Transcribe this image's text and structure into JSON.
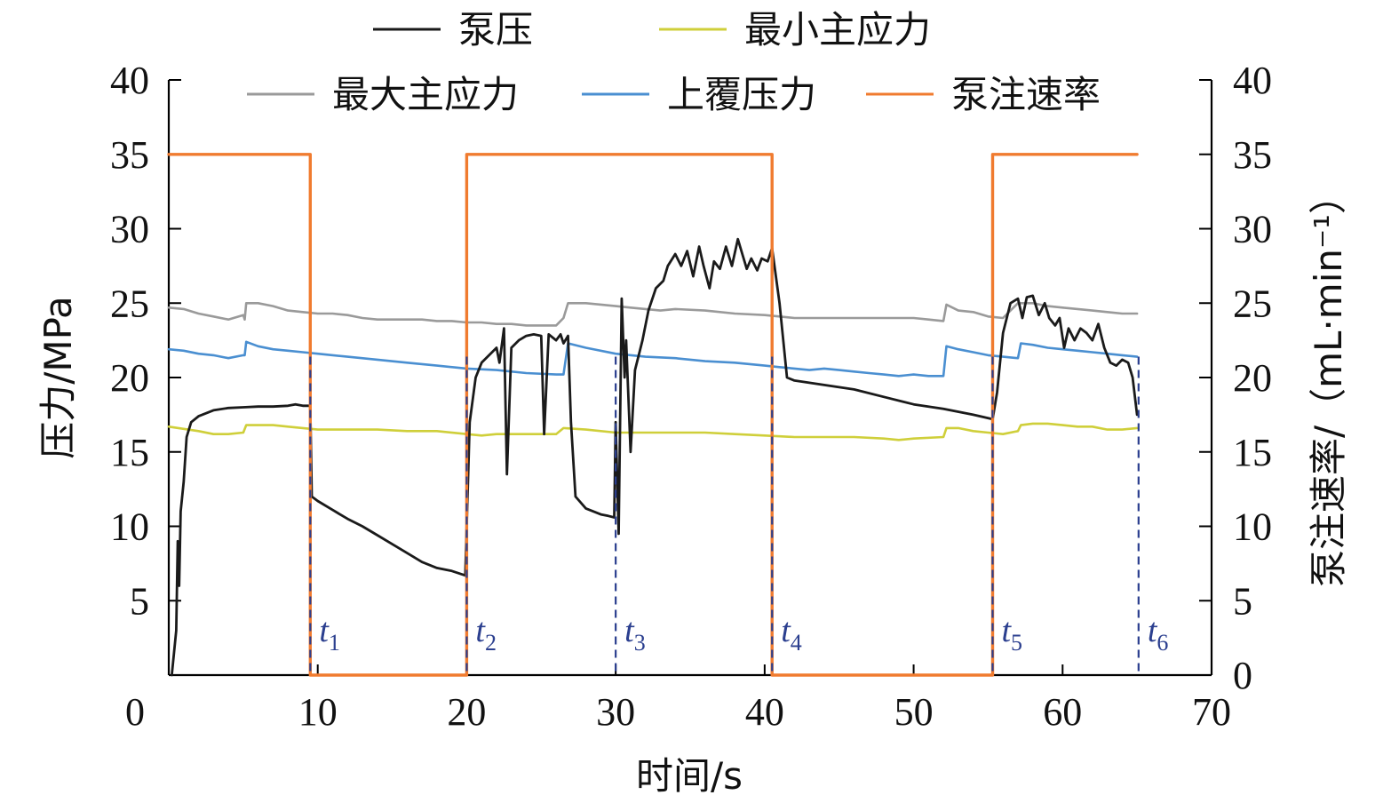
{
  "chart_data": {
    "type": "line",
    "xlabel": "时间/s",
    "ylabel_left": "压力/MPa",
    "ylabel_right": "泵注速率/（mL·min⁻¹）",
    "xlim": [
      0,
      70
    ],
    "ylim_left": [
      0,
      40
    ],
    "ylim_right": [
      0,
      40
    ],
    "xticks": [
      0,
      10,
      20,
      30,
      40,
      50,
      60,
      70
    ],
    "yticks_left": [
      5,
      10,
      15,
      20,
      25,
      30,
      35,
      40
    ],
    "yticks_right": [
      0,
      5,
      10,
      15,
      20,
      25,
      30,
      35,
      40
    ],
    "legend_position": "top",
    "markers": [
      {
        "label": "t",
        "sub": "1",
        "x": 9.5
      },
      {
        "label": "t",
        "sub": "2",
        "x": 20.0
      },
      {
        "label": "t",
        "sub": "3",
        "x": 30.0
      },
      {
        "label": "t",
        "sub": "4",
        "x": 40.5
      },
      {
        "label": "t",
        "sub": "5",
        "x": 55.3
      },
      {
        "label": "t",
        "sub": "6",
        "x": 65.1
      }
    ],
    "series": [
      {
        "name": "泵压",
        "color": "#1a1a1a",
        "axis": "left",
        "points": [
          [
            0.2,
            0
          ],
          [
            0.5,
            3
          ],
          [
            0.6,
            9
          ],
          [
            0.7,
            6
          ],
          [
            0.8,
            11
          ],
          [
            1.0,
            13
          ],
          [
            1.2,
            16
          ],
          [
            1.5,
            17
          ],
          [
            2,
            17.4
          ],
          [
            3,
            17.8
          ],
          [
            4,
            17.95
          ],
          [
            5,
            18
          ],
          [
            6,
            18.05
          ],
          [
            7,
            18.05
          ],
          [
            8,
            18.1
          ],
          [
            8.5,
            18.2
          ],
          [
            9,
            18.1
          ],
          [
            9.5,
            18.1
          ],
          [
            9.6,
            12
          ],
          [
            10,
            11.7
          ],
          [
            11,
            11.1
          ],
          [
            12,
            10.5
          ],
          [
            13,
            10.0
          ],
          [
            14,
            9.4
          ],
          [
            15,
            8.8
          ],
          [
            16,
            8.2
          ],
          [
            17,
            7.6
          ],
          [
            18,
            7.2
          ],
          [
            19,
            7.0
          ],
          [
            19.9,
            6.7
          ],
          [
            20.2,
            17
          ],
          [
            20.6,
            20
          ],
          [
            21,
            21
          ],
          [
            21.5,
            21.5
          ],
          [
            22,
            22
          ],
          [
            22.2,
            21
          ],
          [
            22.5,
            23.3
          ],
          [
            22.7,
            13.5
          ],
          [
            23,
            22
          ],
          [
            23.5,
            22.5
          ],
          [
            24,
            22.8
          ],
          [
            24.5,
            22.9
          ],
          [
            25,
            22.8
          ],
          [
            25.2,
            16.2
          ],
          [
            25.5,
            22.9
          ],
          [
            26,
            22.5
          ],
          [
            26.3,
            22.9
          ],
          [
            26.5,
            22.3
          ],
          [
            26.8,
            22.8
          ],
          [
            27.0,
            17
          ],
          [
            27.3,
            12
          ],
          [
            28,
            11.2
          ],
          [
            29,
            10.8
          ],
          [
            29.5,
            10.7
          ],
          [
            29.9,
            10.6
          ],
          [
            30.0,
            17
          ],
          [
            30.2,
            9.5
          ],
          [
            30.4,
            25.3
          ],
          [
            30.6,
            20
          ],
          [
            30.7,
            22.5
          ],
          [
            31,
            15
          ],
          [
            31.3,
            20.5
          ],
          [
            31.8,
            22.5
          ],
          [
            32.2,
            24.5
          ],
          [
            32.7,
            26
          ],
          [
            33.2,
            26.5
          ],
          [
            33.5,
            27.5
          ],
          [
            34,
            28.3
          ],
          [
            34.4,
            27.5
          ],
          [
            34.8,
            28.5
          ],
          [
            35.2,
            26.8
          ],
          [
            35.6,
            28.8
          ],
          [
            35.9,
            27.5
          ],
          [
            36.3,
            26
          ],
          [
            36.6,
            27.8
          ],
          [
            37,
            27.3
          ],
          [
            37.4,
            28.8
          ],
          [
            37.8,
            27.5
          ],
          [
            38.2,
            29.3
          ],
          [
            38.5,
            28.3
          ],
          [
            38.8,
            27.3
          ],
          [
            39.1,
            28
          ],
          [
            39.5,
            27.2
          ],
          [
            39.8,
            28
          ],
          [
            40.2,
            27.8
          ],
          [
            40.5,
            28.7
          ],
          [
            41,
            25
          ],
          [
            41.5,
            20
          ],
          [
            42,
            19.8
          ],
          [
            44,
            19.5
          ],
          [
            46,
            19.2
          ],
          [
            48,
            18.7
          ],
          [
            50,
            18.2
          ],
          [
            52,
            17.9
          ],
          [
            54,
            17.5
          ],
          [
            55.3,
            17.2
          ],
          [
            55.6,
            19
          ],
          [
            56,
            23
          ],
          [
            56.5,
            25
          ],
          [
            57,
            25.3
          ],
          [
            57.3,
            24
          ],
          [
            57.6,
            25.4
          ],
          [
            58,
            25.5
          ],
          [
            58.4,
            24.2
          ],
          [
            58.8,
            25
          ],
          [
            59.1,
            24
          ],
          [
            59.5,
            23.5
          ],
          [
            59.8,
            24
          ],
          [
            60.1,
            22
          ],
          [
            60.4,
            23.3
          ],
          [
            60.8,
            22.5
          ],
          [
            61.2,
            23.3
          ],
          [
            61.6,
            23
          ],
          [
            62,
            22.5
          ],
          [
            62.4,
            23.6
          ],
          [
            62.8,
            22
          ],
          [
            63.2,
            21
          ],
          [
            63.6,
            20.8
          ],
          [
            64,
            21.2
          ],
          [
            64.4,
            21.0
          ],
          [
            64.7,
            20
          ],
          [
            65.0,
            17.5
          ]
        ]
      },
      {
        "name": "最小主应力",
        "color": "#cfcf3a",
        "axis": "left",
        "points": [
          [
            0,
            16.7
          ],
          [
            2,
            16.4
          ],
          [
            3,
            16.2
          ],
          [
            4,
            16.2
          ],
          [
            5,
            16.3
          ],
          [
            5.2,
            16.8
          ],
          [
            7,
            16.8
          ],
          [
            8,
            16.7
          ],
          [
            9,
            16.6
          ],
          [
            10,
            16.5
          ],
          [
            12,
            16.5
          ],
          [
            14,
            16.5
          ],
          [
            16,
            16.4
          ],
          [
            18,
            16.4
          ],
          [
            20,
            16.2
          ],
          [
            21,
            16.1
          ],
          [
            22,
            16.2
          ],
          [
            24,
            16.2
          ],
          [
            26,
            16.2
          ],
          [
            26.5,
            16.6
          ],
          [
            28,
            16.5
          ],
          [
            30,
            16.3
          ],
          [
            32,
            16.3
          ],
          [
            34,
            16.3
          ],
          [
            36,
            16.3
          ],
          [
            38,
            16.2
          ],
          [
            40,
            16.1
          ],
          [
            42,
            16.0
          ],
          [
            44,
            16.0
          ],
          [
            46,
            16.0
          ],
          [
            48,
            15.9
          ],
          [
            49,
            15.8
          ],
          [
            50,
            15.9
          ],
          [
            52,
            16.0
          ],
          [
            52.2,
            16.6
          ],
          [
            53,
            16.6
          ],
          [
            54,
            16.4
          ],
          [
            55,
            16.3
          ],
          [
            56,
            16.2
          ],
          [
            57,
            16.4
          ],
          [
            57.2,
            16.8
          ],
          [
            58,
            16.9
          ],
          [
            59,
            16.9
          ],
          [
            60,
            16.8
          ],
          [
            61,
            16.7
          ],
          [
            62,
            16.7
          ],
          [
            63,
            16.5
          ],
          [
            64,
            16.5
          ],
          [
            65,
            16.6
          ]
        ]
      },
      {
        "name": "最大主应力",
        "color": "#9a9a9a",
        "axis": "left",
        "points": [
          [
            0,
            24.7
          ],
          [
            1,
            24.6
          ],
          [
            2,
            24.3
          ],
          [
            3,
            24.1
          ],
          [
            4,
            23.9
          ],
          [
            5,
            24.2
          ],
          [
            5.1,
            23.9
          ],
          [
            5.2,
            25
          ],
          [
            6,
            25
          ],
          [
            7,
            24.8
          ],
          [
            8,
            24.5
          ],
          [
            9,
            24.4
          ],
          [
            10,
            24.3
          ],
          [
            11,
            24.3
          ],
          [
            12,
            24.2
          ],
          [
            13,
            24.0
          ],
          [
            14,
            23.9
          ],
          [
            15,
            23.9
          ],
          [
            16,
            23.9
          ],
          [
            17,
            23.9
          ],
          [
            18,
            23.8
          ],
          [
            19,
            23.8
          ],
          [
            20,
            23.7
          ],
          [
            21,
            23.7
          ],
          [
            22,
            23.6
          ],
          [
            23,
            23.6
          ],
          [
            24,
            23.5
          ],
          [
            25,
            23.5
          ],
          [
            26,
            23.5
          ],
          [
            26.5,
            24
          ],
          [
            26.8,
            25
          ],
          [
            28,
            25
          ],
          [
            29,
            24.9
          ],
          [
            30,
            24.8
          ],
          [
            31,
            24.7
          ],
          [
            32,
            24.6
          ],
          [
            33,
            24.5
          ],
          [
            34,
            24.6
          ],
          [
            36,
            24.5
          ],
          [
            38,
            24.3
          ],
          [
            40,
            24.2
          ],
          [
            41,
            24.1
          ],
          [
            42,
            24.0
          ],
          [
            44,
            24.0
          ],
          [
            46,
            24.0
          ],
          [
            48,
            24.0
          ],
          [
            50,
            24.0
          ],
          [
            51,
            23.9
          ],
          [
            52,
            23.8
          ],
          [
            52.2,
            24.9
          ],
          [
            53,
            24.5
          ],
          [
            54,
            24.4
          ],
          [
            55,
            24.1
          ],
          [
            56,
            24.0
          ],
          [
            56.5,
            24.5
          ],
          [
            57,
            25
          ],
          [
            58,
            25.0
          ],
          [
            59,
            24.8
          ],
          [
            60,
            24.7
          ],
          [
            61,
            24.6
          ],
          [
            62,
            24.5
          ],
          [
            63,
            24.4
          ],
          [
            64,
            24.3
          ],
          [
            65,
            24.3
          ]
        ]
      },
      {
        "name": "上覆压力",
        "color": "#4a8fd1",
        "axis": "left",
        "points": [
          [
            0,
            21.9
          ],
          [
            1,
            21.8
          ],
          [
            2,
            21.6
          ],
          [
            3,
            21.5
          ],
          [
            4,
            21.3
          ],
          [
            5,
            21.5
          ],
          [
            5.1,
            21.5
          ],
          [
            5.2,
            22.4
          ],
          [
            6,
            22.1
          ],
          [
            7,
            21.9
          ],
          [
            8,
            21.8
          ],
          [
            9,
            21.7
          ],
          [
            10,
            21.6
          ],
          [
            12,
            21.4
          ],
          [
            14,
            21.2
          ],
          [
            16,
            21.0
          ],
          [
            18,
            20.8
          ],
          [
            20,
            20.6
          ],
          [
            22,
            20.5
          ],
          [
            24,
            20.3
          ],
          [
            26,
            20.2
          ],
          [
            26.5,
            20.2
          ],
          [
            26.8,
            22.3
          ],
          [
            28,
            22.0
          ],
          [
            30,
            21.6
          ],
          [
            32,
            21.4
          ],
          [
            34,
            21.3
          ],
          [
            36,
            21.1
          ],
          [
            38,
            21.0
          ],
          [
            40,
            20.8
          ],
          [
            41,
            20.7
          ],
          [
            42,
            20.6
          ],
          [
            43,
            20.5
          ],
          [
            44,
            20.6
          ],
          [
            45,
            20.5
          ],
          [
            46,
            20.4
          ],
          [
            47,
            20.3
          ],
          [
            48,
            20.2
          ],
          [
            49,
            20.1
          ],
          [
            50,
            20.2
          ],
          [
            51,
            20.1
          ],
          [
            52,
            20.1
          ],
          [
            52.2,
            22.1
          ],
          [
            53,
            21.9
          ],
          [
            54,
            21.7
          ],
          [
            55,
            21.5
          ],
          [
            56,
            21.4
          ],
          [
            57,
            21.3
          ],
          [
            57.2,
            22.3
          ],
          [
            58,
            22.2
          ],
          [
            59,
            22.0
          ],
          [
            60,
            21.9
          ],
          [
            61,
            21.8
          ],
          [
            62,
            21.7
          ],
          [
            63,
            21.6
          ],
          [
            64,
            21.5
          ],
          [
            65,
            21.4
          ]
        ]
      },
      {
        "name": "泵注速率",
        "color": "#f07b2f",
        "axis": "right",
        "points": [
          [
            0,
            35
          ],
          [
            9.5,
            35
          ],
          [
            9.5,
            0
          ],
          [
            20,
            0
          ],
          [
            20,
            35
          ],
          [
            40.5,
            35
          ],
          [
            40.5,
            0
          ],
          [
            55.3,
            0
          ],
          [
            55.3,
            35
          ],
          [
            65,
            35
          ]
        ]
      }
    ]
  }
}
